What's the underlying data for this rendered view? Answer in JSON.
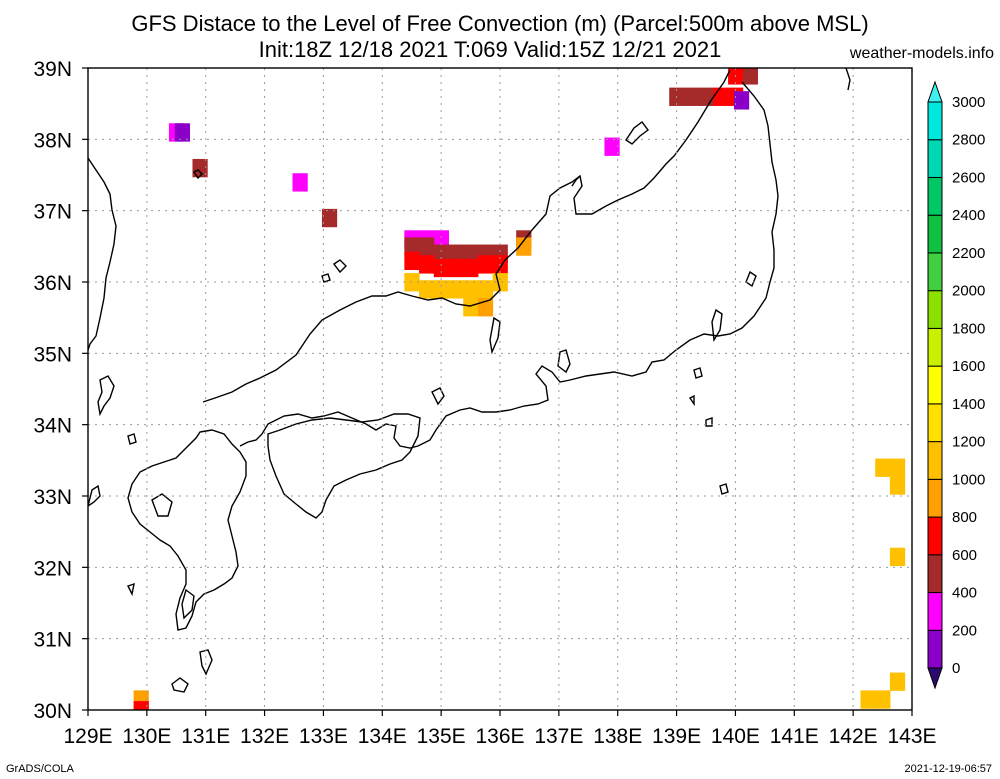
{
  "header": {
    "title_line1": "GFS Distace to the Level of Free Convection (m) (Parcel:500m above MSL)",
    "title_line2": "Init:18Z 12/18 2021 T:069 Valid:15Z 12/21 2021",
    "site": "weather-models.info"
  },
  "footer": {
    "credit": "GrADS/COLA",
    "timestamp": "2021-12-19-06:57"
  },
  "map": {
    "lon_range": [
      129,
      143
    ],
    "lat_range": [
      30,
      39
    ],
    "lon_labels": [
      "129E",
      "130E",
      "131E",
      "132E",
      "133E",
      "134E",
      "135E",
      "136E",
      "137E",
      "138E",
      "139E",
      "140E",
      "141E",
      "142E",
      "143E"
    ],
    "lat_labels": [
      "30N",
      "31N",
      "32N",
      "33N",
      "34N",
      "35N",
      "36N",
      "37N",
      "38N",
      "39N"
    ],
    "grid": "dotted",
    "coastline_color": "#000000"
  },
  "colorbar": {
    "levels": [
      "0",
      "200",
      "400",
      "600",
      "800",
      "1000",
      "1200",
      "1400",
      "1600",
      "1800",
      "2000",
      "2200",
      "2400",
      "2600",
      "2800",
      "3000"
    ],
    "colors": [
      "#2a0a6e",
      "#8a00c8",
      "#ff00ff",
      "#a52a2a",
      "#ff0000",
      "#ffa000",
      "#ffc000",
      "#ffe000",
      "#ffff00",
      "#c8f000",
      "#8ce000",
      "#40d040",
      "#10c040",
      "#00c864",
      "#00d8b4",
      "#00e8dc",
      "#40f0f0"
    ],
    "low_arrow_color": "#2a0a6e",
    "high_arrow_color": "#40f0f0"
  },
  "cells": [
    {
      "lon": 130.5,
      "lat": 38.1,
      "color": "#ff00ff"
    },
    {
      "lon": 130.6,
      "lat": 38.1,
      "color": "#8a00c8"
    },
    {
      "lon": 130.9,
      "lat": 37.6,
      "color": "#a52a2a"
    },
    {
      "lon": 132.6,
      "lat": 37.4,
      "color": "#ff00ff"
    },
    {
      "lon": 133.1,
      "lat": 36.9,
      "color": "#a52a2a"
    },
    {
      "lon": 137.9,
      "lat": 37.9,
      "color": "#ff00ff"
    },
    {
      "lon": 136.4,
      "lat": 36.6,
      "color": "#a52a2a"
    },
    {
      "lon": 134.5,
      "lat": 36.6,
      "color": "#ff00ff"
    },
    {
      "lon": 134.75,
      "lat": 36.6,
      "color": "#ff00ff"
    },
    {
      "lon": 135.0,
      "lat": 36.6,
      "color": "#ff00ff"
    },
    {
      "lon": 134.5,
      "lat": 36.5,
      "color": "#a52a2a"
    },
    {
      "lon": 134.75,
      "lat": 36.5,
      "color": "#a52a2a"
    },
    {
      "lon": 135.0,
      "lat": 36.4,
      "color": "#a52a2a"
    },
    {
      "lon": 135.25,
      "lat": 36.4,
      "color": "#a52a2a"
    },
    {
      "lon": 135.5,
      "lat": 36.4,
      "color": "#a52a2a"
    },
    {
      "lon": 135.75,
      "lat": 36.4,
      "color": "#a52a2a"
    },
    {
      "lon": 136.0,
      "lat": 36.4,
      "color": "#a52a2a"
    },
    {
      "lon": 134.5,
      "lat": 36.3,
      "color": "#ff0000"
    },
    {
      "lon": 134.75,
      "lat": 36.25,
      "color": "#ff0000"
    },
    {
      "lon": 135.0,
      "lat": 36.2,
      "color": "#ff0000"
    },
    {
      "lon": 135.25,
      "lat": 36.2,
      "color": "#ff0000"
    },
    {
      "lon": 135.5,
      "lat": 36.2,
      "color": "#ff0000"
    },
    {
      "lon": 135.75,
      "lat": 36.25,
      "color": "#ff0000"
    },
    {
      "lon": 136.0,
      "lat": 36.25,
      "color": "#ff0000"
    },
    {
      "lon": 134.5,
      "lat": 36.0,
      "color": "#ffc000"
    },
    {
      "lon": 134.75,
      "lat": 35.9,
      "color": "#ffc000"
    },
    {
      "lon": 135.0,
      "lat": 35.9,
      "color": "#ffc000"
    },
    {
      "lon": 135.25,
      "lat": 35.9,
      "color": "#ffc000"
    },
    {
      "lon": 135.5,
      "lat": 35.9,
      "color": "#ffc000"
    },
    {
      "lon": 135.75,
      "lat": 35.9,
      "color": "#ffc000"
    },
    {
      "lon": 136.0,
      "lat": 36.0,
      "color": "#ffc000"
    },
    {
      "lon": 135.5,
      "lat": 35.65,
      "color": "#ffc000"
    },
    {
      "lon": 135.75,
      "lat": 35.65,
      "color": "#ffa000"
    },
    {
      "lon": 136.4,
      "lat": 36.5,
      "color": "#ffa000"
    },
    {
      "lon": 139.0,
      "lat": 38.6,
      "color": "#a52a2a"
    },
    {
      "lon": 139.25,
      "lat": 38.6,
      "color": "#a52a2a"
    },
    {
      "lon": 139.5,
      "lat": 38.6,
      "color": "#a52a2a"
    },
    {
      "lon": 139.75,
      "lat": 38.6,
      "color": "#ff0000"
    },
    {
      "lon": 140.0,
      "lat": 38.9,
      "color": "#ff0000"
    },
    {
      "lon": 140.0,
      "lat": 38.6,
      "color": "#ff0000"
    },
    {
      "lon": 140.25,
      "lat": 38.9,
      "color": "#a52a2a"
    },
    {
      "lon": 140.1,
      "lat": 38.55,
      "color": "#8a00c8"
    },
    {
      "lon": 142.5,
      "lat": 33.4,
      "color": "#ffc000"
    },
    {
      "lon": 142.75,
      "lat": 33.4,
      "color": "#ffc000"
    },
    {
      "lon": 142.75,
      "lat": 33.15,
      "color": "#ffc000"
    },
    {
      "lon": 142.75,
      "lat": 32.15,
      "color": "#ffc000"
    },
    {
      "lon": 142.75,
      "lat": 30.4,
      "color": "#ffc000"
    },
    {
      "lon": 142.5,
      "lat": 30.15,
      "color": "#ffc000"
    },
    {
      "lon": 142.25,
      "lat": 30.15,
      "color": "#ffc000"
    },
    {
      "lon": 129.9,
      "lat": 30.15,
      "color": "#ffa000"
    },
    {
      "lon": 129.9,
      "lat": 30.0,
      "color": "#ff0000"
    }
  ]
}
